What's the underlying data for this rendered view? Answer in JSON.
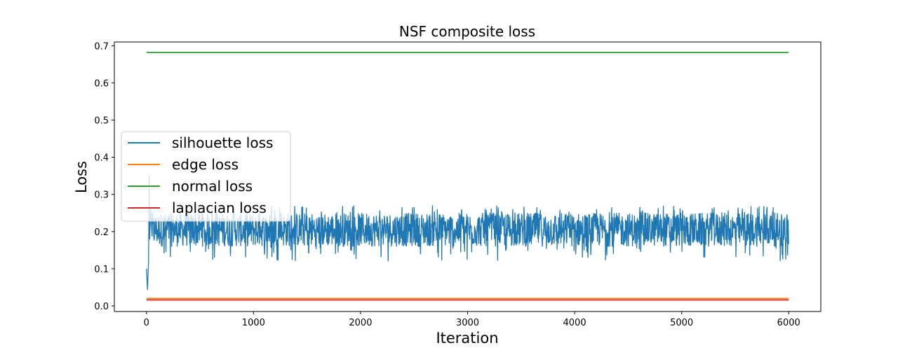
{
  "chart_data": {
    "type": "line",
    "title": "NSF composite loss",
    "xlabel": "Iteration",
    "ylabel": "Loss",
    "xlim": [
      -300,
      6300
    ],
    "ylim": [
      -0.015,
      0.71
    ],
    "x_ticks": [
      0,
      1000,
      2000,
      3000,
      4000,
      5000,
      6000
    ],
    "x_tick_labels": [
      "0",
      "1000",
      "2000",
      "3000",
      "4000",
      "5000",
      "6000"
    ],
    "y_ticks": [
      0.0,
      0.1,
      0.2,
      0.3,
      0.4,
      0.5,
      0.6,
      0.7
    ],
    "y_tick_labels": [
      "0.0",
      "0.1",
      "0.2",
      "0.3",
      "0.4",
      "0.5",
      "0.6",
      "0.7"
    ],
    "grid": false,
    "legend_position": "center-left",
    "iterations": [
      0,
      6000
    ],
    "series": [
      {
        "name": "silhouette loss",
        "color": "#1f77b4",
        "noisy": true,
        "start_points": [
          [
            0,
            0.1
          ],
          [
            5,
            0.07
          ],
          [
            10,
            0.044
          ],
          [
            15,
            0.09
          ],
          [
            20,
            0.12
          ],
          [
            25,
            0.35
          ],
          [
            30,
            0.18
          ],
          [
            40,
            0.26
          ],
          [
            50,
            0.2
          ]
        ],
        "mean": 0.205,
        "band_low": 0.12,
        "band_high": 0.27,
        "typical_low": 0.16,
        "typical_high": 0.25
      },
      {
        "name": "edge loss",
        "color": "#ff7f0e",
        "noisy": false,
        "x": [
          0,
          6000
        ],
        "y": [
          0.02,
          0.02
        ]
      },
      {
        "name": "normal loss",
        "color": "#2ca02c",
        "noisy": false,
        "x": [
          0,
          6000
        ],
        "y": [
          0.682,
          0.682
        ]
      },
      {
        "name": "laplacian loss",
        "color": "#d62728",
        "noisy": false,
        "x": [
          0,
          6000
        ],
        "y": [
          0.016,
          0.016
        ]
      }
    ]
  }
}
